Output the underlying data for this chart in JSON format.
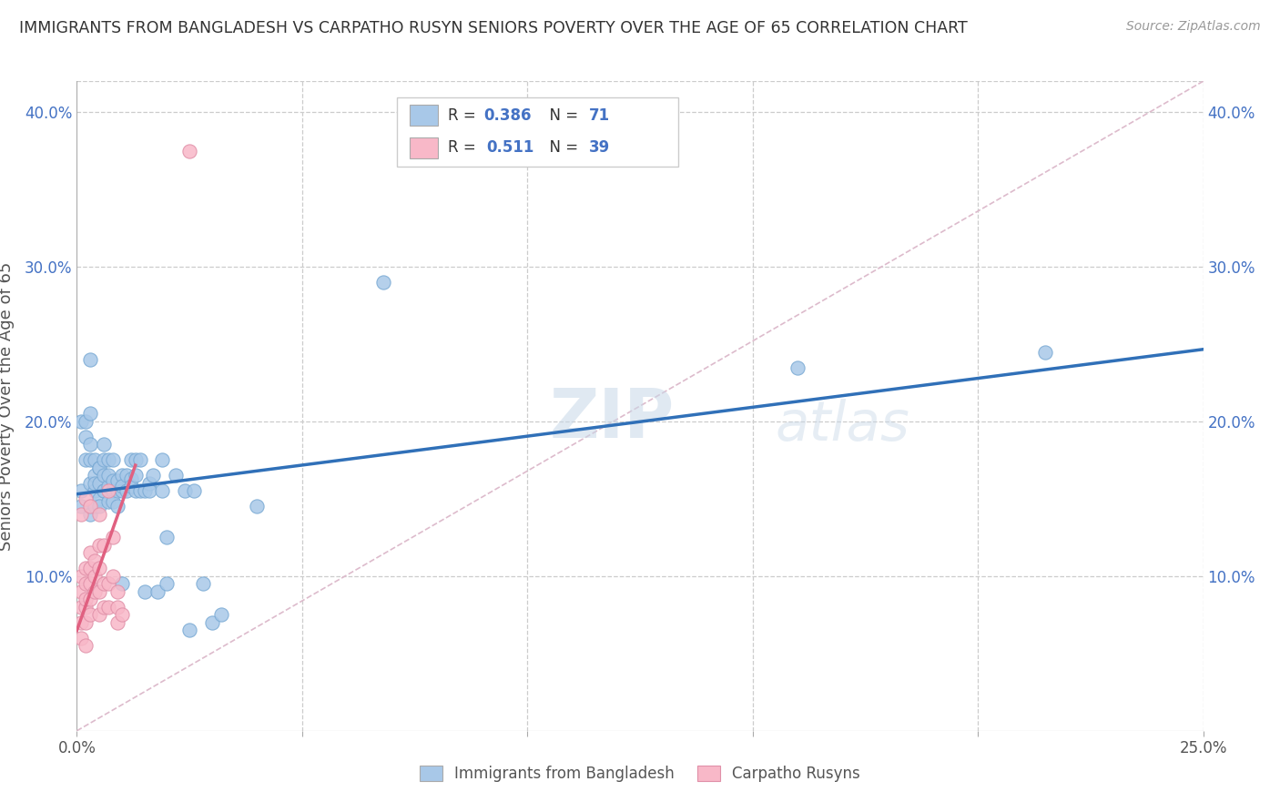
{
  "title": "IMMIGRANTS FROM BANGLADESH VS CARPATHO RUSYN SENIORS POVERTY OVER THE AGE OF 65 CORRELATION CHART",
  "source": "Source: ZipAtlas.com",
  "ylabel": "Seniors Poverty Over the Age of 65",
  "xlim": [
    0.0,
    0.25
  ],
  "ylim": [
    0.0,
    0.42
  ],
  "blue_color": "#a8c8e8",
  "pink_color": "#f8b8c8",
  "blue_line_color": "#3070b8",
  "pink_line_color": "#e06080",
  "diagonal_color": "#cccccc",
  "watermark": "ZIPatlas",
  "legend_labels": [
    "Immigrants from Bangladesh",
    "Carpatho Rusyns"
  ],
  "blue_scatter": [
    [
      0.001,
      0.155
    ],
    [
      0.001,
      0.2
    ],
    [
      0.001,
      0.145
    ],
    [
      0.002,
      0.19
    ],
    [
      0.002,
      0.175
    ],
    [
      0.002,
      0.2
    ],
    [
      0.003,
      0.14
    ],
    [
      0.003,
      0.16
    ],
    [
      0.003,
      0.24
    ],
    [
      0.003,
      0.175
    ],
    [
      0.003,
      0.205
    ],
    [
      0.003,
      0.185
    ],
    [
      0.004,
      0.165
    ],
    [
      0.004,
      0.145
    ],
    [
      0.004,
      0.175
    ],
    [
      0.004,
      0.155
    ],
    [
      0.004,
      0.16
    ],
    [
      0.005,
      0.17
    ],
    [
      0.005,
      0.15
    ],
    [
      0.005,
      0.16
    ],
    [
      0.005,
      0.17
    ],
    [
      0.005,
      0.145
    ],
    [
      0.006,
      0.155
    ],
    [
      0.006,
      0.175
    ],
    [
      0.006,
      0.155
    ],
    [
      0.006,
      0.185
    ],
    [
      0.006,
      0.165
    ],
    [
      0.007,
      0.148
    ],
    [
      0.007,
      0.158
    ],
    [
      0.007,
      0.165
    ],
    [
      0.007,
      0.175
    ],
    [
      0.008,
      0.155
    ],
    [
      0.008,
      0.162
    ],
    [
      0.008,
      0.175
    ],
    [
      0.008,
      0.148
    ],
    [
      0.009,
      0.155
    ],
    [
      0.009,
      0.145
    ],
    [
      0.009,
      0.162
    ],
    [
      0.01,
      0.155
    ],
    [
      0.01,
      0.165
    ],
    [
      0.01,
      0.158
    ],
    [
      0.01,
      0.095
    ],
    [
      0.011,
      0.165
    ],
    [
      0.011,
      0.155
    ],
    [
      0.012,
      0.163
    ],
    [
      0.012,
      0.158
    ],
    [
      0.012,
      0.175
    ],
    [
      0.013,
      0.155
    ],
    [
      0.013,
      0.175
    ],
    [
      0.013,
      0.165
    ],
    [
      0.014,
      0.155
    ],
    [
      0.014,
      0.175
    ],
    [
      0.015,
      0.155
    ],
    [
      0.015,
      0.09
    ],
    [
      0.016,
      0.16
    ],
    [
      0.016,
      0.155
    ],
    [
      0.017,
      0.165
    ],
    [
      0.018,
      0.09
    ],
    [
      0.019,
      0.155
    ],
    [
      0.019,
      0.175
    ],
    [
      0.02,
      0.125
    ],
    [
      0.02,
      0.095
    ],
    [
      0.022,
      0.165
    ],
    [
      0.024,
      0.155
    ],
    [
      0.025,
      0.065
    ],
    [
      0.026,
      0.155
    ],
    [
      0.028,
      0.095
    ],
    [
      0.03,
      0.07
    ],
    [
      0.032,
      0.075
    ],
    [
      0.04,
      0.145
    ],
    [
      0.068,
      0.29
    ],
    [
      0.16,
      0.235
    ],
    [
      0.215,
      0.245
    ]
  ],
  "pink_scatter": [
    [
      0.001,
      0.06
    ],
    [
      0.001,
      0.07
    ],
    [
      0.001,
      0.08
    ],
    [
      0.001,
      0.09
    ],
    [
      0.001,
      0.1
    ],
    [
      0.001,
      0.14
    ],
    [
      0.002,
      0.055
    ],
    [
      0.002,
      0.07
    ],
    [
      0.002,
      0.08
    ],
    [
      0.002,
      0.085
    ],
    [
      0.002,
      0.095
    ],
    [
      0.002,
      0.105
    ],
    [
      0.002,
      0.15
    ],
    [
      0.003,
      0.075
    ],
    [
      0.003,
      0.085
    ],
    [
      0.003,
      0.095
    ],
    [
      0.003,
      0.105
    ],
    [
      0.003,
      0.115
    ],
    [
      0.003,
      0.145
    ],
    [
      0.004,
      0.09
    ],
    [
      0.004,
      0.1
    ],
    [
      0.004,
      0.11
    ],
    [
      0.005,
      0.075
    ],
    [
      0.005,
      0.09
    ],
    [
      0.005,
      0.105
    ],
    [
      0.005,
      0.12
    ],
    [
      0.005,
      0.14
    ],
    [
      0.006,
      0.08
    ],
    [
      0.006,
      0.095
    ],
    [
      0.006,
      0.12
    ],
    [
      0.007,
      0.08
    ],
    [
      0.007,
      0.095
    ],
    [
      0.007,
      0.155
    ],
    [
      0.008,
      0.1
    ],
    [
      0.008,
      0.125
    ],
    [
      0.009,
      0.07
    ],
    [
      0.009,
      0.09
    ],
    [
      0.009,
      0.08
    ],
    [
      0.01,
      0.075
    ],
    [
      0.025,
      0.375
    ]
  ]
}
